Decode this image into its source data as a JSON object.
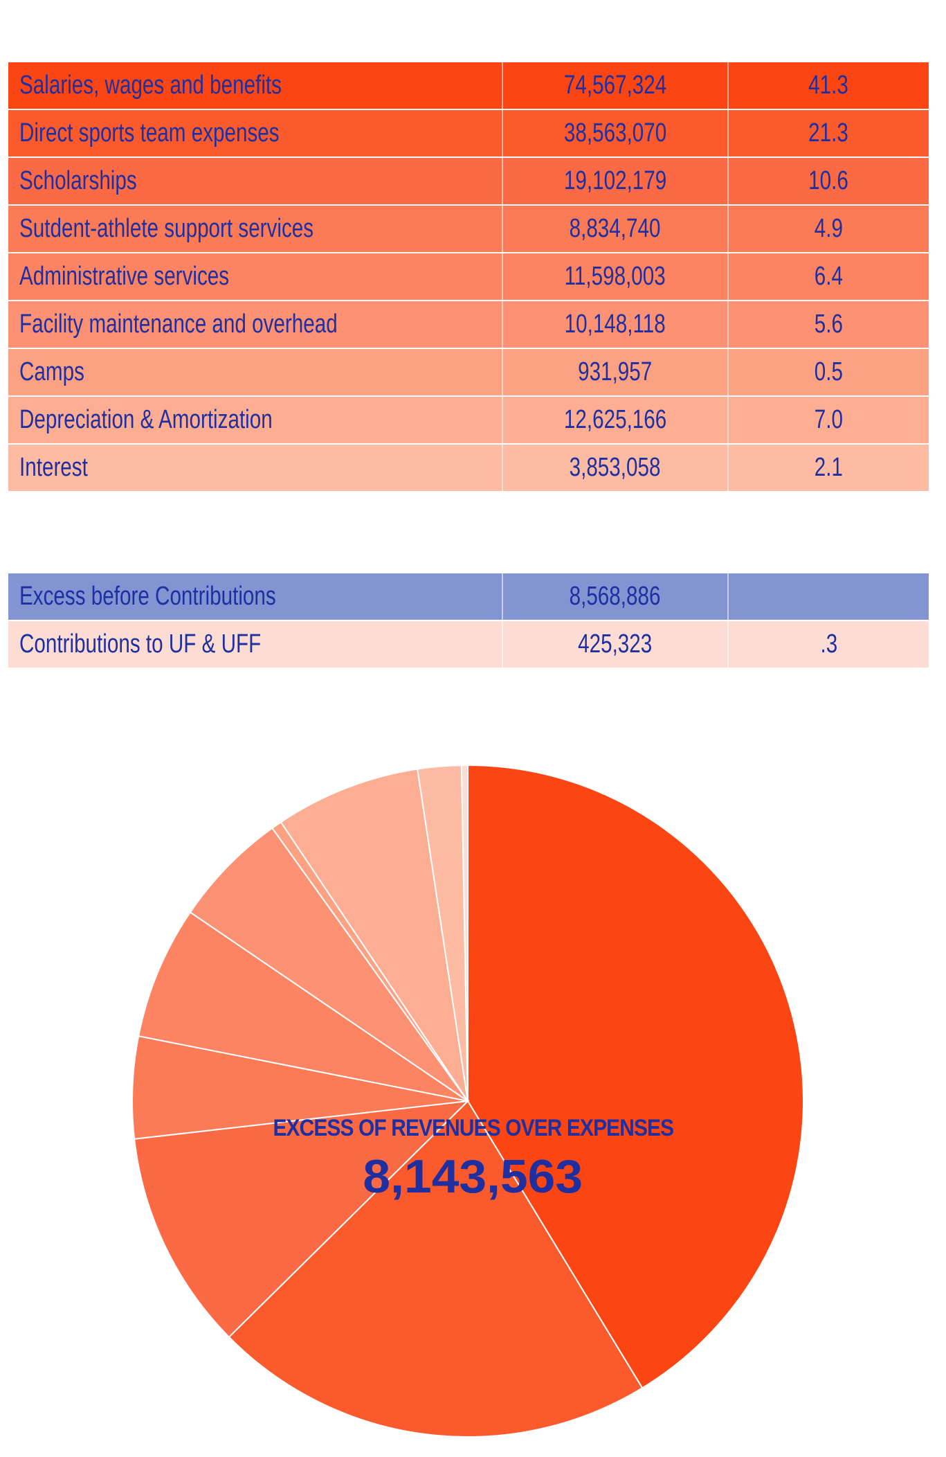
{
  "expenses": {
    "rows": [
      {
        "label": "Salaries, wages and benefits",
        "amount": "74,567,324",
        "percent": "41.3",
        "color": "#fb4614"
      },
      {
        "label": "Direct sports team expenses",
        "amount": "38,563,070",
        "percent": "21.3",
        "color": "#fb5a2c"
      },
      {
        "label": "Scholarships",
        "amount": "19,102,179",
        "percent": "10.6",
        "color": "#fb6a44"
      },
      {
        "label": "Sutdent-athlete support services",
        "amount": "8,834,740",
        "percent": "4.9",
        "color": "#fc7b57"
      },
      {
        "label": "Administrative services",
        "amount": "11,598,003",
        "percent": "6.4",
        "color": "#fc8463"
      },
      {
        "label": "Facility maintenance and overhead",
        "amount": "10,148,118",
        "percent": "5.6",
        "color": "#fc9173"
      },
      {
        "label": "Camps",
        "amount": "931,957",
        "percent": "0.5",
        "color": "#fca283"
      },
      {
        "label": "Depreciation & Amortization",
        "amount": "12,625,166",
        "percent": "7.0",
        "color": "#fdad92"
      },
      {
        "label": "Interest",
        "amount": "3,853,058",
        "percent": "2.1",
        "color": "#fdbba3"
      }
    ]
  },
  "summary": {
    "rows": [
      {
        "label": "Excess before Contributions",
        "amount": "8,568,886",
        "percent": "",
        "color": "#8394d3"
      },
      {
        "label": "Contributions to UF & UFF",
        "amount": "425,323",
        "percent": ".3",
        "color": "#fdddd3"
      }
    ]
  },
  "chart_data": {
    "type": "pie",
    "categories": [
      "Salaries, wages and benefits",
      "Direct sports team expenses",
      "Scholarships",
      "Sutdent-athlete support services",
      "Administrative services",
      "Facility maintenance and overhead",
      "Camps",
      "Depreciation & Amortization",
      "Interest",
      "Contributions to UF & UFF"
    ],
    "values": [
      41.3,
      21.3,
      10.6,
      4.9,
      6.4,
      5.6,
      0.5,
      7.0,
      2.1,
      0.3
    ],
    "colors": [
      "#fb4614",
      "#fb5a2c",
      "#fb6a44",
      "#fc7b57",
      "#fc8463",
      "#fc9173",
      "#fca283",
      "#fdad92",
      "#fdbba3",
      "#fdddd3"
    ],
    "center_title": "EXCESS OF REVENUES OVER EXPENSES",
    "center_value": "8,143,563"
  }
}
